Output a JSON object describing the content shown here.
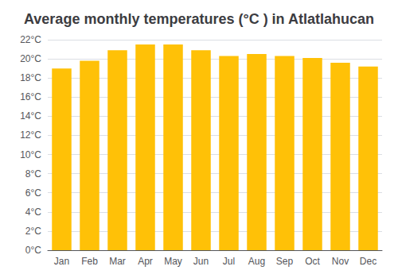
{
  "chart_data": {
    "type": "bar",
    "title": "Average monthly temperatures (°C ) in Atlatlahucan",
    "categories": [
      "Jan",
      "Feb",
      "Mar",
      "Apr",
      "May",
      "Jun",
      "Jul",
      "Aug",
      "Sep",
      "Oct",
      "Nov",
      "Dec"
    ],
    "values": [
      19.0,
      19.8,
      20.9,
      21.5,
      21.5,
      20.9,
      20.3,
      20.5,
      20.3,
      20.1,
      19.6,
      19.2
    ],
    "color": "#FFC107",
    "ylim": [
      0,
      22
    ],
    "yticks": [
      {
        "value": 0,
        "label": "0°C"
      },
      {
        "value": 2,
        "label": "2°C"
      },
      {
        "value": 4,
        "label": "4°C"
      },
      {
        "value": 6,
        "label": "6°C"
      },
      {
        "value": 8,
        "label": "8°C"
      },
      {
        "value": 10,
        "label": "10°C"
      },
      {
        "value": 12,
        "label": "12°C"
      },
      {
        "value": 14,
        "label": "14°C"
      },
      {
        "value": 16,
        "label": "16°C"
      },
      {
        "value": 18,
        "label": "18°C"
      },
      {
        "value": 20,
        "label": "20°C"
      },
      {
        "value": 22,
        "label": "22°C"
      }
    ],
    "grid": true
  }
}
